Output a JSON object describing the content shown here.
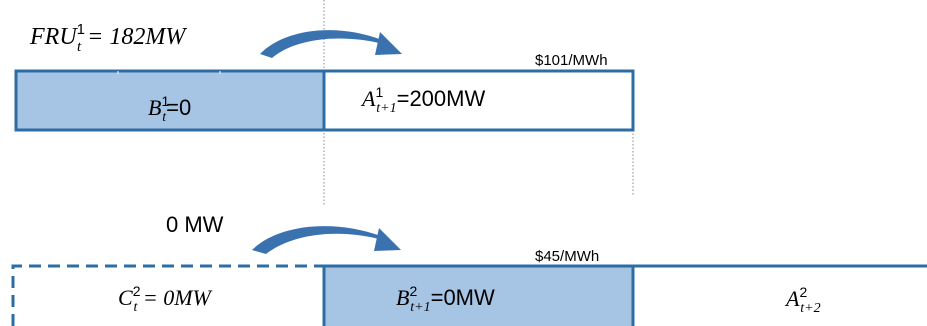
{
  "colors": {
    "box_stroke": "#2e6da4",
    "filled_box": "#a6c4e4",
    "arrow": "#3a72b0",
    "guide_line": "#8a8a8a",
    "background": "#ffffff"
  },
  "top": {
    "fru_label": {
      "base": "FRU",
      "sup": "1",
      "sub": "t",
      "rest": " = 182MW"
    },
    "price": "$101/MWh",
    "box_b": {
      "base": "B",
      "sup": "1",
      "sub": "t",
      "rest": "=0"
    },
    "box_a": {
      "base": "A",
      "sup": "1",
      "sub": "t+1",
      "rest": "=200MW"
    }
  },
  "bottom": {
    "transfer_label": "0 MW",
    "price": "$45/MWh",
    "box_c": {
      "base": "C",
      "sup": "2",
      "sub": "t",
      "rest": " = 0MW"
    },
    "box_b": {
      "base": "B",
      "sup": "2",
      "sub": "t+1",
      "rest": "=0MW"
    },
    "box_a": {
      "base": "A",
      "sup": "2",
      "sub": "t+2"
    }
  }
}
